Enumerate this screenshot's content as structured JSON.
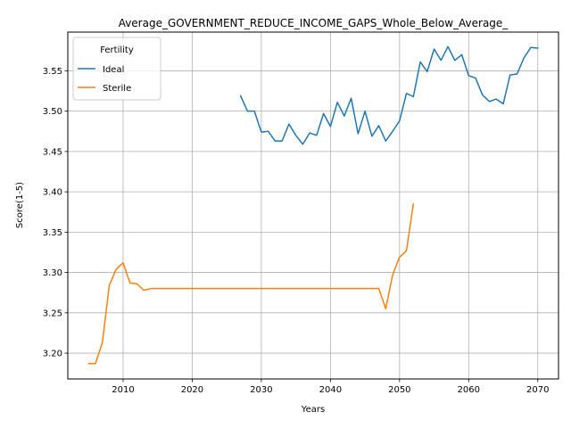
{
  "chart_data": {
    "type": "line",
    "title": "Average_GOVERNMENT_REDUCE_INCOME_GAPS_Whole_Below_Average_",
    "xlabel": "Years",
    "ylabel": "Score(1-5)",
    "xlim": [
      2002,
      2073
    ],
    "ylim": [
      3.168,
      3.598
    ],
    "xticks": [
      2010,
      2020,
      2030,
      2040,
      2050,
      2060,
      2070
    ],
    "yticks": [
      3.2,
      3.25,
      3.3,
      3.35,
      3.4,
      3.45,
      3.5,
      3.55
    ],
    "grid": true,
    "legend": {
      "title": "Fertility",
      "position": "top-left"
    },
    "series": [
      {
        "name": "Ideal",
        "color": "#1f77b4",
        "x": [
          2027,
          2028,
          2029,
          2030,
          2031,
          2032,
          2033,
          2034,
          2035,
          2036,
          2037,
          2038,
          2039,
          2040,
          2041,
          2042,
          2043,
          2044,
          2045,
          2046,
          2047,
          2048,
          2049,
          2050,
          2051,
          2052,
          2053,
          2054,
          2055,
          2056,
          2057,
          2058,
          2059,
          2060,
          2061,
          2062,
          2063,
          2064,
          2065,
          2066,
          2067,
          2068,
          2069,
          2070
        ],
        "y": [
          3.519,
          3.5,
          3.5,
          3.474,
          3.475,
          3.463,
          3.463,
          3.484,
          3.47,
          3.459,
          3.473,
          3.47,
          3.497,
          3.481,
          3.511,
          3.494,
          3.516,
          3.472,
          3.5,
          3.469,
          3.482,
          3.463,
          3.475,
          3.488,
          3.522,
          3.518,
          3.561,
          3.549,
          3.577,
          3.563,
          3.58,
          3.563,
          3.57,
          3.544,
          3.541,
          3.52,
          3.512,
          3.515,
          3.509,
          3.545,
          3.546,
          3.566,
          3.579,
          3.578
        ]
      },
      {
        "name": "Sterile",
        "color": "#ff7f0e",
        "x": [
          2005,
          2006,
          2007,
          2008,
          2009,
          2010,
          2011,
          2012,
          2013,
          2014,
          2015,
          2016,
          2017,
          2018,
          2019,
          2020,
          2021,
          2022,
          2023,
          2024,
          2025,
          2026,
          2027,
          2028,
          2029,
          2030,
          2031,
          2032,
          2033,
          2034,
          2035,
          2036,
          2037,
          2038,
          2039,
          2040,
          2041,
          2042,
          2043,
          2044,
          2045,
          2046,
          2047,
          2048,
          2049,
          2050,
          2051,
          2052
        ],
        "y": [
          3.187,
          3.187,
          3.213,
          3.284,
          3.304,
          3.312,
          3.287,
          3.286,
          3.278,
          3.28,
          3.28,
          3.28,
          3.28,
          3.28,
          3.28,
          3.28,
          3.28,
          3.28,
          3.28,
          3.28,
          3.28,
          3.28,
          3.28,
          3.28,
          3.28,
          3.28,
          3.28,
          3.28,
          3.28,
          3.28,
          3.28,
          3.28,
          3.28,
          3.28,
          3.28,
          3.28,
          3.28,
          3.28,
          3.28,
          3.28,
          3.28,
          3.28,
          3.28,
          3.255,
          3.297,
          3.319,
          3.327,
          3.385
        ]
      }
    ]
  }
}
